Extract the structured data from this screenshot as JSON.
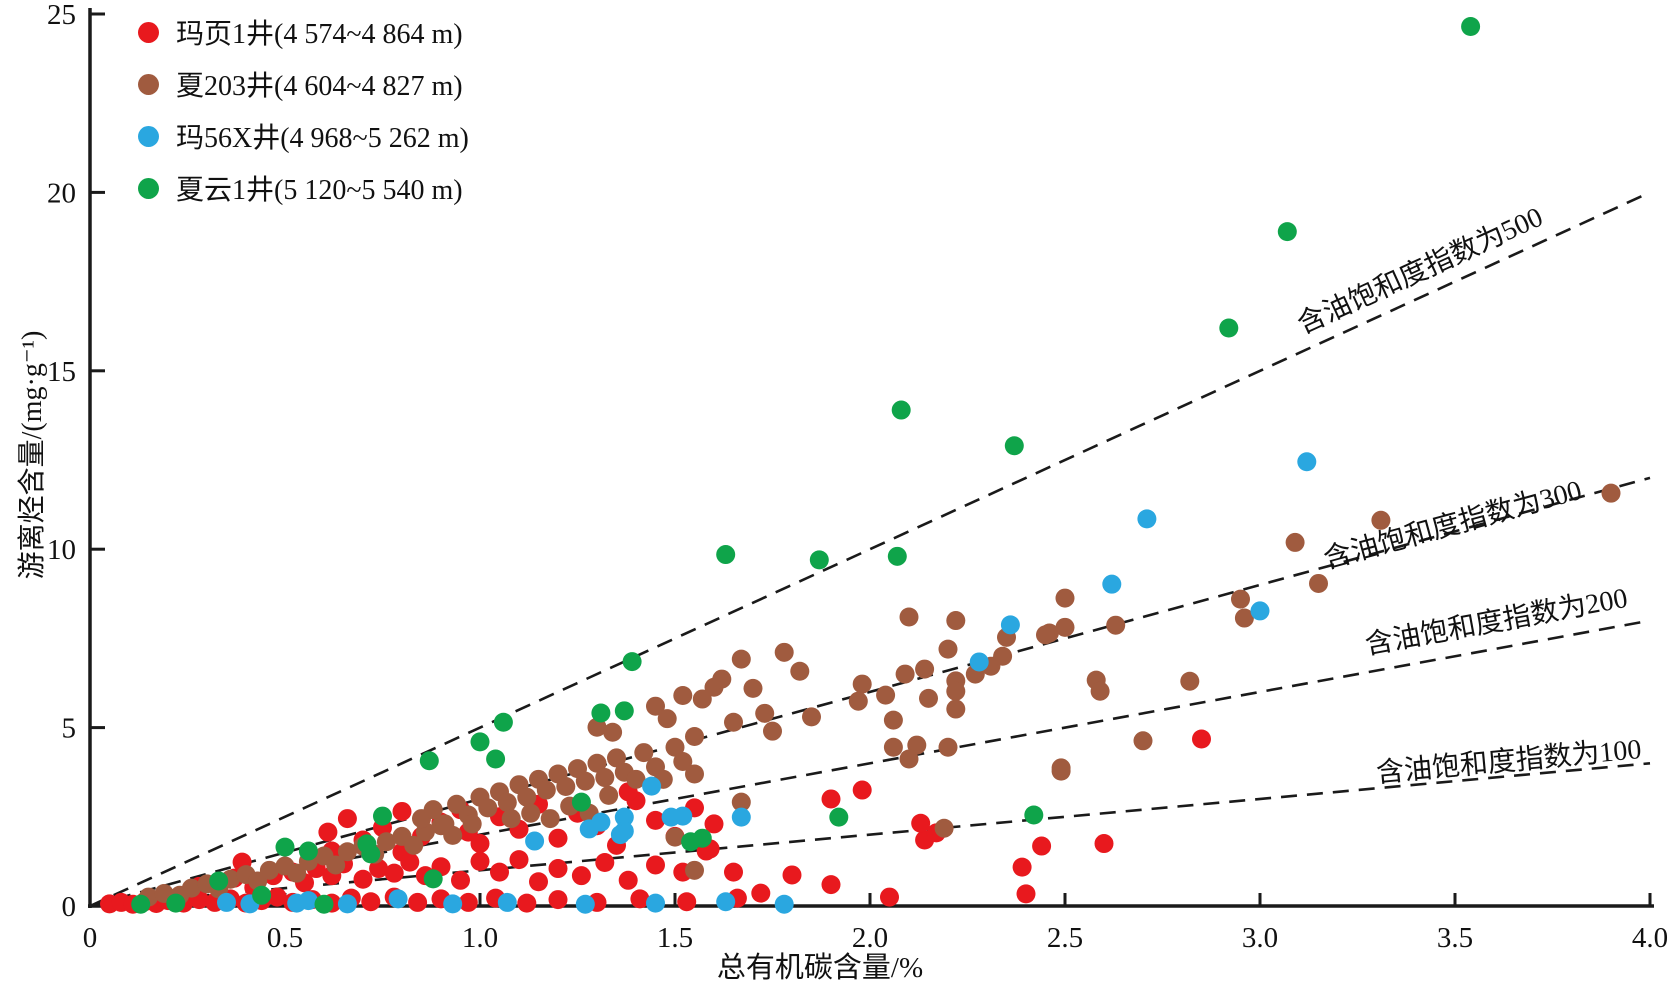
{
  "legend": {
    "items": [
      {
        "label": "玛页1井(4 574~4 864 m)"
      },
      {
        "label": "夏203井(4 604~4 827 m)"
      },
      {
        "label": "玛56X井(4 968~5 262 m)"
      },
      {
        "label": "夏云1井(5 120~5 540 m)"
      }
    ]
  },
  "chart_data": {
    "type": "scatter",
    "xlabel": "总有机碳含量/%",
    "ylabel": "游离烃含量/(mg·g⁻¹)",
    "xlim": [
      0,
      4.0
    ],
    "ylim": [
      0,
      25
    ],
    "grid": false,
    "legend_position": "top-left",
    "axis_color": "#1a1a1a",
    "x_ticks": [
      {
        "value": 0,
        "label": "0"
      },
      {
        "value": 0.5,
        "label": "0.5"
      },
      {
        "value": 1.0,
        "label": "1.0"
      },
      {
        "value": 1.5,
        "label": "1.5"
      },
      {
        "value": 2.0,
        "label": "2.0"
      },
      {
        "value": 2.5,
        "label": "2.5"
      },
      {
        "value": 3.0,
        "label": "3.0"
      },
      {
        "value": 3.5,
        "label": "3.5"
      },
      {
        "value": 4.0,
        "label": "4.0"
      }
    ],
    "y_ticks": [
      {
        "value": 0,
        "label": "0"
      },
      {
        "value": 5,
        "label": "5"
      },
      {
        "value": 10,
        "label": "10"
      },
      {
        "value": 15,
        "label": "15"
      },
      {
        "value": 20,
        "label": "20"
      },
      {
        "value": 25,
        "label": "25"
      }
    ],
    "reference_lines": [
      {
        "osi": 500,
        "label": "含油饱和度指数为500",
        "style": "dashed"
      },
      {
        "osi": 300,
        "label": "含油饱和度指数为300",
        "style": "dashed"
      },
      {
        "osi": 200,
        "label": "含油饱和度指数为200",
        "style": "dashed"
      },
      {
        "osi": 100,
        "label": "含油饱和度指数为100",
        "style": "dashed"
      }
    ],
    "series": [
      {
        "name": "玛页1井(4 574~4 864 m)",
        "color": "#e8191e",
        "points": [
          [
            0.05,
            0.06
          ],
          [
            0.08,
            0.1
          ],
          [
            0.11,
            0.05
          ],
          [
            0.14,
            0.12
          ],
          [
            0.17,
            0.07
          ],
          [
            0.2,
            0.15
          ],
          [
            0.24,
            0.08
          ],
          [
            0.28,
            0.18
          ],
          [
            0.32,
            0.1
          ],
          [
            0.36,
            0.2
          ],
          [
            0.4,
            0.08
          ],
          [
            0.44,
            0.15
          ],
          [
            0.48,
            0.25
          ],
          [
            0.52,
            0.1
          ],
          [
            0.57,
            0.18
          ],
          [
            0.62,
            0.08
          ],
          [
            0.67,
            0.22
          ],
          [
            0.72,
            0.12
          ],
          [
            0.78,
            0.25
          ],
          [
            0.84,
            0.1
          ],
          [
            0.9,
            0.2
          ],
          [
            0.97,
            0.1
          ],
          [
            1.04,
            0.22
          ],
          [
            1.12,
            0.08
          ],
          [
            1.2,
            0.18
          ],
          [
            1.3,
            0.1
          ],
          [
            1.41,
            0.2
          ],
          [
            1.53,
            0.12
          ],
          [
            1.66,
            0.22
          ],
          [
            1.72,
            0.36
          ],
          [
            2.05,
            0.25
          ],
          [
            2.4,
            0.34
          ],
          [
            0.28,
            0.55
          ],
          [
            0.33,
            0.62
          ],
          [
            0.37,
            0.78
          ],
          [
            0.39,
            1.23
          ],
          [
            0.42,
            0.52
          ],
          [
            0.47,
            0.85
          ],
          [
            0.52,
            0.95
          ],
          [
            0.55,
            0.65
          ],
          [
            0.58,
            1.05
          ],
          [
            0.62,
            0.85
          ],
          [
            0.65,
            1.18
          ],
          [
            0.7,
            0.75
          ],
          [
            0.74,
            1.05
          ],
          [
            0.78,
            0.92
          ],
          [
            0.8,
            1.51
          ],
          [
            0.82,
            1.23
          ],
          [
            0.86,
            0.85
          ],
          [
            0.9,
            1.1
          ],
          [
            0.95,
            0.72
          ],
          [
            1.0,
            1.25
          ],
          [
            1.05,
            0.95
          ],
          [
            1.1,
            1.3
          ],
          [
            1.15,
            0.68
          ],
          [
            1.2,
            1.05
          ],
          [
            1.26,
            0.85
          ],
          [
            1.32,
            1.22
          ],
          [
            1.38,
            0.72
          ],
          [
            1.45,
            1.15
          ],
          [
            1.52,
            0.95
          ],
          [
            1.58,
            1.54
          ],
          [
            1.59,
            1.6
          ],
          [
            1.65,
            0.95
          ],
          [
            1.8,
            0.87
          ],
          [
            1.9,
            0.6
          ],
          [
            0.61,
            2.07
          ],
          [
            0.62,
            1.54
          ],
          [
            0.66,
            2.45
          ],
          [
            0.7,
            1.85
          ],
          [
            0.75,
            2.2
          ],
          [
            0.8,
            2.65
          ],
          [
            0.85,
            1.95
          ],
          [
            0.9,
            2.35
          ],
          [
            0.95,
            2.7
          ],
          [
            0.97,
            2.07
          ],
          [
            1.0,
            1.75
          ],
          [
            1.05,
            2.5
          ],
          [
            1.1,
            2.15
          ],
          [
            1.15,
            2.85
          ],
          [
            1.2,
            1.9
          ],
          [
            1.25,
            2.6
          ],
          [
            1.3,
            2.25
          ],
          [
            1.35,
            1.7
          ],
          [
            1.4,
            2.95
          ],
          [
            1.45,
            2.4
          ],
          [
            1.5,
            1.95
          ],
          [
            1.55,
            2.75
          ],
          [
            1.6,
            2.3
          ],
          [
            1.38,
            3.2
          ],
          [
            2.14,
            1.85
          ],
          [
            2.17,
            2.05
          ],
          [
            2.13,
            2.32
          ],
          [
            1.9,
            3.0
          ],
          [
            1.98,
            3.25
          ],
          [
            2.39,
            1.09
          ],
          [
            2.44,
            1.68
          ],
          [
            2.6,
            1.75
          ],
          [
            2.85,
            4.68
          ]
        ]
      },
      {
        "name": "夏203井(4 604~4 827 m)",
        "color": "#a05b3f",
        "points": [
          [
            0.15,
            0.25
          ],
          [
            0.19,
            0.35
          ],
          [
            0.23,
            0.3
          ],
          [
            0.26,
            0.5
          ],
          [
            0.3,
            0.62
          ],
          [
            0.33,
            0.48
          ],
          [
            0.36,
            0.75
          ],
          [
            0.4,
            0.88
          ],
          [
            0.43,
            0.7
          ],
          [
            0.46,
            1.0
          ],
          [
            0.5,
            1.12
          ],
          [
            0.53,
            0.92
          ],
          [
            0.56,
            1.25
          ],
          [
            0.6,
            1.4
          ],
          [
            0.63,
            1.15
          ],
          [
            0.66,
            1.52
          ],
          [
            0.7,
            1.68
          ],
          [
            0.73,
            1.45
          ],
          [
            0.76,
            1.8
          ],
          [
            0.8,
            1.95
          ],
          [
            0.83,
            1.7
          ],
          [
            0.86,
            2.08
          ],
          [
            0.9,
            2.25
          ],
          [
            0.93,
            1.98
          ],
          [
            1.5,
            1.93
          ],
          [
            1.55,
            1.0
          ],
          [
            1.67,
            2.91
          ],
          [
            2.19,
            2.18
          ],
          [
            0.85,
            2.45
          ],
          [
            0.88,
            2.7
          ],
          [
            0.91,
            2.3
          ],
          [
            0.94,
            2.85
          ],
          [
            0.97,
            2.55
          ],
          [
            1.0,
            3.05
          ],
          [
            1.02,
            2.75
          ],
          [
            1.05,
            3.2
          ],
          [
            1.07,
            2.9
          ],
          [
            1.1,
            3.4
          ],
          [
            1.12,
            3.05
          ],
          [
            1.15,
            3.55
          ],
          [
            1.17,
            3.25
          ],
          [
            1.2,
            3.7
          ],
          [
            1.22,
            3.35
          ],
          [
            1.25,
            3.85
          ],
          [
            1.27,
            3.5
          ],
          [
            1.3,
            4.0
          ],
          [
            1.32,
            3.6
          ],
          [
            1.35,
            4.15
          ],
          [
            1.37,
            3.75
          ],
          [
            1.4,
            3.55
          ],
          [
            1.42,
            4.3
          ],
          [
            1.45,
            3.9
          ],
          [
            1.47,
            3.55
          ],
          [
            1.5,
            4.45
          ],
          [
            1.52,
            4.05
          ],
          [
            1.55,
            3.7
          ],
          [
            1.13,
            2.6
          ],
          [
            1.18,
            2.45
          ],
          [
            1.23,
            2.8
          ],
          [
            1.28,
            2.6
          ],
          [
            1.33,
            3.1
          ],
          [
            1.08,
            2.45
          ],
          [
            0.98,
            2.3
          ],
          [
            1.3,
            5.01
          ],
          [
            1.34,
            4.87
          ],
          [
            1.45,
            5.6
          ],
          [
            1.57,
            5.8
          ],
          [
            1.6,
            6.13
          ],
          [
            1.62,
            6.36
          ],
          [
            1.67,
            6.92
          ],
          [
            1.78,
            7.11
          ],
          [
            1.82,
            6.58
          ],
          [
            1.48,
            5.25
          ],
          [
            1.52,
            5.9
          ],
          [
            1.7,
            6.1
          ],
          [
            1.73,
            5.4
          ],
          [
            1.55,
            4.75
          ],
          [
            1.65,
            5.15
          ],
          [
            1.75,
            4.9
          ],
          [
            1.85,
            5.3
          ],
          [
            1.97,
            5.74
          ],
          [
            1.98,
            6.22
          ],
          [
            2.04,
            5.91
          ],
          [
            2.06,
            5.21
          ],
          [
            2.09,
            6.5
          ],
          [
            2.14,
            6.64
          ],
          [
            2.15,
            5.82
          ],
          [
            2.2,
            7.2
          ],
          [
            2.22,
            6.31
          ],
          [
            2.22,
            6.02
          ],
          [
            2.22,
            5.52
          ],
          [
            2.27,
            6.5
          ],
          [
            2.31,
            6.72
          ],
          [
            2.34,
            7.0
          ],
          [
            2.35,
            7.53
          ],
          [
            2.46,
            7.65
          ],
          [
            2.5,
            7.81
          ],
          [
            2.58,
            6.33
          ],
          [
            2.59,
            6.02
          ],
          [
            2.1,
            8.1
          ],
          [
            2.22,
            8.0
          ],
          [
            2.5,
            8.63
          ],
          [
            2.06,
            4.45
          ],
          [
            2.12,
            4.51
          ],
          [
            2.1,
            4.12
          ],
          [
            2.2,
            4.45
          ],
          [
            2.49,
            3.87
          ],
          [
            2.49,
            3.78
          ],
          [
            2.7,
            4.63
          ],
          [
            2.45,
            7.6
          ],
          [
            2.63,
            7.87
          ],
          [
            2.82,
            6.3
          ],
          [
            2.95,
            8.6
          ],
          [
            2.96,
            8.07
          ],
          [
            3.09,
            10.19
          ],
          [
            3.15,
            9.04
          ],
          [
            3.31,
            10.81
          ],
          [
            3.9,
            11.57
          ]
        ]
      },
      {
        "name": "玛56X井(4 968~5 262 m)",
        "color": "#2aa7e0",
        "points": [
          [
            3.12,
            12.45
          ],
          [
            2.71,
            10.85
          ],
          [
            2.62,
            9.02
          ],
          [
            3.0,
            8.27
          ],
          [
            2.36,
            7.88
          ],
          [
            2.28,
            6.84
          ],
          [
            1.44,
            3.36
          ],
          [
            1.37,
            2.49
          ],
          [
            1.37,
            2.1
          ],
          [
            1.31,
            2.35
          ],
          [
            1.28,
            2.16
          ],
          [
            1.49,
            2.49
          ],
          [
            1.52,
            2.52
          ],
          [
            1.14,
            1.82
          ],
          [
            1.67,
            2.49
          ],
          [
            1.36,
            2.0
          ],
          [
            0.35,
            0.1
          ],
          [
            0.41,
            0.06
          ],
          [
            0.53,
            0.08
          ],
          [
            0.56,
            0.15
          ],
          [
            0.66,
            0.06
          ],
          [
            0.79,
            0.2
          ],
          [
            0.93,
            0.06
          ],
          [
            1.07,
            0.1
          ],
          [
            1.27,
            0.05
          ],
          [
            1.45,
            0.08
          ],
          [
            1.63,
            0.12
          ],
          [
            1.78,
            0.05
          ]
        ]
      },
      {
        "name": "夏云1井(5 120~5 540 m)",
        "color": "#0fa44a",
        "points": [
          [
            3.54,
            24.65
          ],
          [
            3.07,
            18.9
          ],
          [
            2.92,
            16.2
          ],
          [
            2.37,
            12.9
          ],
          [
            2.08,
            13.9
          ],
          [
            2.07,
            9.8
          ],
          [
            1.87,
            9.7
          ],
          [
            1.63,
            9.85
          ],
          [
            1.39,
            6.85
          ],
          [
            1.37,
            5.47
          ],
          [
            1.31,
            5.41
          ],
          [
            1.06,
            5.15
          ],
          [
            1.0,
            4.6
          ],
          [
            1.04,
            4.12
          ],
          [
            0.87,
            4.07
          ],
          [
            1.26,
            2.91
          ],
          [
            1.54,
            1.8
          ],
          [
            0.75,
            2.52
          ],
          [
            0.88,
            0.76
          ],
          [
            1.92,
            2.49
          ],
          [
            1.57,
            1.9
          ],
          [
            2.42,
            2.55
          ],
          [
            0.13,
            0.05
          ],
          [
            0.22,
            0.08
          ],
          [
            0.33,
            0.7
          ],
          [
            0.44,
            0.3
          ],
          [
            0.5,
            1.65
          ],
          [
            0.56,
            1.54
          ],
          [
            0.71,
            1.74
          ],
          [
            0.72,
            1.46
          ],
          [
            0.6,
            0.05
          ]
        ]
      }
    ]
  }
}
